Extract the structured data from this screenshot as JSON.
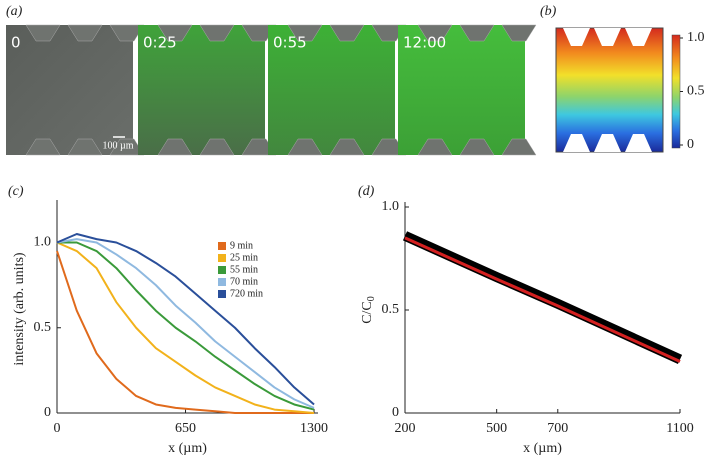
{
  "panel_a": {
    "label": "(a)",
    "frames": [
      "0",
      "0:25",
      "0:55",
      "12:00"
    ],
    "scale_bar": "100 µm"
  },
  "panel_b": {
    "label": "(b)",
    "colorbar": {
      "ylim": [
        0,
        1
      ],
      "yticks": [
        0,
        0.5,
        {
          "value": 1,
          "label": "1.0"
        }
      ]
    }
  },
  "chart_data": [
    {
      "type": "line",
      "panel_label": "(c)",
      "xlabel": "x (µm)",
      "ylabel": "intensity (arb. units)",
      "x": [
        0,
        100,
        200,
        300,
        400,
        500,
        600,
        700,
        800,
        900,
        1000,
        1100,
        1200,
        1300
      ],
      "xlim": [
        0,
        1320
      ],
      "xticks": [
        0,
        650,
        1300
      ],
      "ylim": [
        0,
        1.22
      ],
      "yticks": [
        0,
        0.5,
        {
          "value": 1,
          "label": "1.0"
        }
      ],
      "series": [
        {
          "name": "9 min",
          "color": "#e06a1c",
          "values": [
            0.95,
            0.6,
            0.35,
            0.2,
            0.1,
            0.05,
            0.03,
            0.02,
            0.01,
            0,
            0,
            0,
            0,
            0
          ]
        },
        {
          "name": "25 min",
          "color": "#f2b21b",
          "values": [
            1.0,
            0.95,
            0.85,
            0.65,
            0.5,
            0.38,
            0.3,
            0.22,
            0.15,
            0.1,
            0.05,
            0.02,
            0.01,
            0
          ]
        },
        {
          "name": "55 min",
          "color": "#3a9a3a",
          "values": [
            1.0,
            1.0,
            0.95,
            0.85,
            0.72,
            0.6,
            0.5,
            0.42,
            0.33,
            0.25,
            0.17,
            0.1,
            0.05,
            0.02
          ]
        },
        {
          "name": "70 min",
          "color": "#8fb9e0",
          "values": [
            1.0,
            1.02,
            1.0,
            0.93,
            0.85,
            0.75,
            0.63,
            0.53,
            0.42,
            0.33,
            0.24,
            0.15,
            0.08,
            0.03
          ]
        },
        {
          "name": "720 min",
          "color": "#2a4f9a",
          "values": [
            1.0,
            1.05,
            1.02,
            1.0,
            0.95,
            0.88,
            0.8,
            0.7,
            0.6,
            0.5,
            0.38,
            0.27,
            0.15,
            0.05
          ]
        }
      ]
    },
    {
      "type": "line",
      "panel_label": "(d)",
      "xlabel": "x (µm)",
      "ylabel": "C/C",
      "ylabel_sub": "0",
      "x": [
        200,
        500,
        700,
        1100
      ],
      "xlim": [
        200,
        1100
      ],
      "xticks": [
        200,
        500,
        700,
        1100
      ],
      "ylim": [
        0,
        1.0
      ],
      "yticks": [
        0,
        0.5,
        {
          "value": 1,
          "label": "1.0"
        }
      ],
      "series": [
        {
          "color": "#000000",
          "values": [
            0.86,
            0.66,
            0.53,
            0.26
          ]
        },
        {
          "color": "#d42020",
          "values": [
            0.85,
            0.65,
            0.52,
            0.25
          ]
        }
      ]
    }
  ]
}
